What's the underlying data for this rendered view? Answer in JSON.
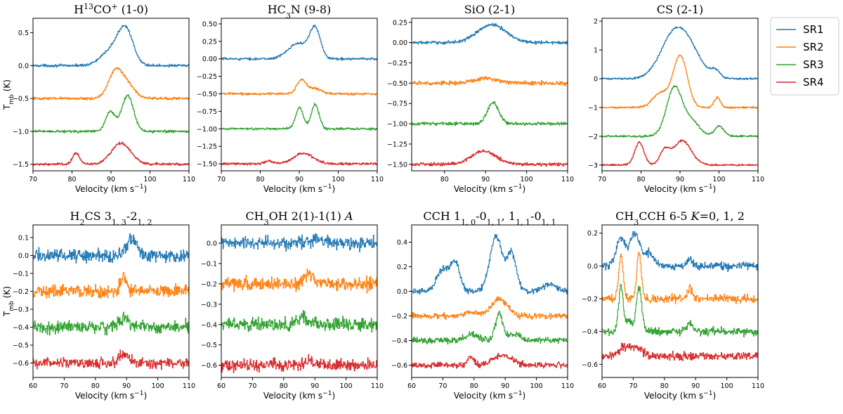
{
  "figure": {
    "ylabel_main": "T",
    "ylabel_sub": "mb",
    "ylabel_unit": "(K)",
    "xlabel": "Velocity (km s",
    "xlabel_exp": "−1",
    "xlabel_close": ")"
  },
  "legend": {
    "placement": "right",
    "entries": [
      {
        "name": "SR1",
        "color": "#1f77b4"
      },
      {
        "name": "SR2",
        "color": "#ff7f0e"
      },
      {
        "name": "SR3",
        "color": "#2ca02c"
      },
      {
        "name": "SR4",
        "color": "#d62728"
      }
    ]
  },
  "chart_data": [
    {
      "type": "line",
      "title": "H13CO+ (1-0)",
      "title_parts": [
        {
          "t": "H"
        },
        {
          "t": "13",
          "s": "sup"
        },
        {
          "t": "CO"
        },
        {
          "t": "+",
          "s": "sup"
        },
        {
          "t": " (1-0)"
        }
      ],
      "xlim": [
        70,
        110
      ],
      "ylim": [
        -1.6,
        0.72
      ],
      "xticks": [
        70,
        80,
        90,
        100,
        110
      ],
      "yticks": [
        -1.5,
        -1.0,
        -0.5,
        0.0,
        0.5
      ],
      "ytick_labels": [
        "−1.5",
        "−1.0",
        "−0.5",
        "0.0",
        "0.5"
      ],
      "series": [
        {
          "name": "SR1",
          "baseline": 0.0,
          "noise": 0.012,
          "peaks": [
            [
              91,
              0.28,
              3
            ],
            [
              93.8,
              0.42,
              1.8
            ]
          ]
        },
        {
          "name": "SR2",
          "baseline": -0.5,
          "noise": 0.012,
          "peaks": [
            [
              91,
              0.38,
              1.8
            ],
            [
              94,
              0.2,
              2
            ]
          ]
        },
        {
          "name": "SR3",
          "baseline": -1.0,
          "noise": 0.012,
          "peaks": [
            [
              89.8,
              0.3,
              1.2
            ],
            [
              94.2,
              0.55,
              1.5
            ]
          ]
        },
        {
          "name": "SR4",
          "baseline": -1.5,
          "noise": 0.012,
          "peaks": [
            [
              81,
              0.17,
              0.9
            ],
            [
              92.5,
              0.32,
              2.5
            ]
          ]
        }
      ]
    },
    {
      "type": "line",
      "title": "HC3N (9-8)",
      "title_parts": [
        {
          "t": "HC"
        },
        {
          "t": "3",
          "s": "sub"
        },
        {
          "t": "N (9-8)"
        }
      ],
      "xlim": [
        70,
        110
      ],
      "ylim": [
        -1.6,
        0.58
      ],
      "xticks": [
        70,
        80,
        90,
        100,
        110
      ],
      "yticks": [
        -1.5,
        -1.25,
        -1.0,
        -0.75,
        -0.5,
        -0.25,
        0.0,
        0.25,
        0.5
      ],
      "ytick_labels": [
        "−1.50",
        "−1.25",
        "−1.00",
        "−0.75",
        "−0.50",
        "−0.25",
        "0.00",
        "0.25",
        "0.50"
      ],
      "series": [
        {
          "name": "SR1",
          "baseline": 0.0,
          "noise": 0.01,
          "peaks": [
            [
              89.5,
              0.22,
              2.5
            ],
            [
              94,
              0.42,
              1.4
            ]
          ]
        },
        {
          "name": "SR2",
          "baseline": -0.5,
          "noise": 0.01,
          "peaks": [
            [
              90.5,
              0.2,
              1.2
            ],
            [
              94,
              0.08,
              1.5
            ]
          ]
        },
        {
          "name": "SR3",
          "baseline": -1.0,
          "noise": 0.01,
          "peaks": [
            [
              90,
              0.3,
              1
            ],
            [
              94,
              0.35,
              1
            ]
          ]
        },
        {
          "name": "SR4",
          "baseline": -1.5,
          "noise": 0.01,
          "peaks": [
            [
              91,
              0.15,
              2.5
            ],
            [
              82,
              0.04,
              1
            ]
          ]
        }
      ]
    },
    {
      "type": "line",
      "title": "SiO (2-1)",
      "title_parts": [
        {
          "t": "SiO (2-1)"
        }
      ],
      "xlim": [
        72,
        110
      ],
      "ylim": [
        -1.58,
        0.3
      ],
      "xticks": [
        80,
        90,
        100,
        110
      ],
      "yticks": [
        -1.5,
        -1.25,
        -1.0,
        -0.75,
        -0.5,
        -0.25,
        0.0,
        0.25
      ],
      "ytick_labels": [
        "−1.50",
        "−1.25",
        "−1.00",
        "−0.75",
        "−0.50",
        "−0.25",
        "0.00",
        "0.25"
      ],
      "series": [
        {
          "name": "SR1",
          "baseline": 0.0,
          "noise": 0.012,
          "peaks": [
            [
              91.5,
              0.22,
              3.5
            ]
          ]
        },
        {
          "name": "SR2",
          "baseline": -0.5,
          "noise": 0.015,
          "peaks": [
            [
              90,
              0.06,
              3
            ]
          ]
        },
        {
          "name": "SR3",
          "baseline": -1.0,
          "noise": 0.012,
          "peaks": [
            [
              91.8,
              0.26,
              1.4
            ]
          ]
        },
        {
          "name": "SR4",
          "baseline": -1.5,
          "noise": 0.012,
          "peaks": [
            [
              89.5,
              0.16,
              3
            ]
          ]
        }
      ]
    },
    {
      "type": "line",
      "title": "CS (2-1)",
      "title_parts": [
        {
          "t": "CS (2-1)"
        }
      ],
      "xlim": [
        70,
        110
      ],
      "ylim": [
        -3.2,
        2.1
      ],
      "xticks": [
        70,
        80,
        90,
        100,
        110
      ],
      "yticks": [
        -3,
        -2,
        -1,
        0,
        1,
        2
      ],
      "ytick_labels": [
        "−3",
        "−2",
        "−1",
        "0",
        "1",
        "2"
      ],
      "series": [
        {
          "name": "SR1",
          "baseline": 0.0,
          "noise": 0.02,
          "peaks": [
            [
              88.5,
              1.55,
              3.5
            ],
            [
              93,
              0.6,
              3
            ],
            [
              99,
              0.25,
              1.2
            ]
          ]
        },
        {
          "name": "SR2",
          "baseline": -1.0,
          "noise": 0.02,
          "peaks": [
            [
              90,
              1.8,
              1.8
            ],
            [
              85,
              0.5,
              2
            ],
            [
              99.5,
              0.35,
              0.8
            ]
          ]
        },
        {
          "name": "SR3",
          "baseline": -2.0,
          "noise": 0.02,
          "peaks": [
            [
              88.5,
              1.7,
              2
            ],
            [
              93,
              0.5,
              2
            ],
            [
              100,
              0.35,
              1.2
            ]
          ]
        },
        {
          "name": "SR4",
          "baseline": -3.0,
          "noise": 0.02,
          "peaks": [
            [
              79.5,
              0.78,
              1.2
            ],
            [
              86,
              0.48,
              1.2
            ],
            [
              90.5,
              0.85,
              2.3
            ]
          ]
        }
      ]
    },
    {
      "type": "line",
      "title": "H2CS 31,3-21,2",
      "title_parts": [
        {
          "t": "H"
        },
        {
          "t": "2",
          "s": "sub"
        },
        {
          "t": "CS 3"
        },
        {
          "t": "1, 3",
          "s": "sub"
        },
        {
          "t": "-2"
        },
        {
          "t": "1, 2",
          "s": "sub"
        }
      ],
      "xlim": [
        60,
        110
      ],
      "ylim": [
        -0.68,
        0.17
      ],
      "xticks": [
        60,
        70,
        80,
        90,
        100,
        110
      ],
      "yticks": [
        -0.6,
        -0.5,
        -0.4,
        -0.3,
        -0.2,
        -0.1,
        0.0,
        0.1
      ],
      "ytick_labels": [
        "−0.6",
        "−0.5",
        "−0.4",
        "−0.3",
        "−0.2",
        "−0.1",
        "0.0",
        "0.1"
      ],
      "series": [
        {
          "name": "SR1",
          "baseline": 0.0,
          "noise": 0.022,
          "peaks": [
            [
              91.5,
              0.1,
              1.5
            ]
          ]
        },
        {
          "name": "SR2",
          "baseline": -0.2,
          "noise": 0.022,
          "peaks": [
            [
              89,
              0.08,
              1
            ]
          ]
        },
        {
          "name": "SR3",
          "baseline": -0.4,
          "noise": 0.022,
          "peaks": [
            [
              89,
              0.05,
              1.5
            ]
          ]
        },
        {
          "name": "SR4",
          "baseline": -0.6,
          "noise": 0.018,
          "peaks": [
            [
              89,
              0.05,
              1.5
            ]
          ]
        }
      ]
    },
    {
      "type": "line",
      "title": "CH3OH 2(1)-1(1) A",
      "title_parts": [
        {
          "t": "CH"
        },
        {
          "t": "3",
          "s": "sub"
        },
        {
          "t": "OH 2(1)-1(1) "
        },
        {
          "t": "A",
          "s": "it"
        }
      ],
      "xlim": [
        60,
        110
      ],
      "ylim": [
        -0.66,
        0.09
      ],
      "xticks": [
        60,
        70,
        80,
        90,
        100,
        110
      ],
      "yticks": [
        -0.6,
        -0.5,
        -0.4,
        -0.3,
        -0.2,
        -0.1,
        0.0
      ],
      "ytick_labels": [
        "−0.6",
        "−0.5",
        "−0.4",
        "−0.3",
        "−0.2",
        "−0.1",
        "0.0"
      ],
      "series": [
        {
          "name": "SR1",
          "baseline": 0.0,
          "noise": 0.02,
          "peaks": [
            [
              91,
              0.03,
              2
            ]
          ]
        },
        {
          "name": "SR2",
          "baseline": -0.2,
          "noise": 0.02,
          "peaks": [
            [
              88,
              0.05,
              1.5
            ]
          ]
        },
        {
          "name": "SR3",
          "baseline": -0.4,
          "noise": 0.02,
          "peaks": [
            [
              86,
              0.04,
              1.5
            ]
          ]
        },
        {
          "name": "SR4",
          "baseline": -0.6,
          "noise": 0.018,
          "peaks": [
            [
              88,
              0.02,
              1.5
            ]
          ]
        }
      ]
    },
    {
      "type": "line",
      "title": "CCH 11,0-01,1, 11,1-01,1",
      "title_parts": [
        {
          "t": "CCH 1"
        },
        {
          "t": "1, 0",
          "s": "sub"
        },
        {
          "t": "-0"
        },
        {
          "t": "1, 1",
          "s": "sub"
        },
        {
          "t": ", 1"
        },
        {
          "t": "1, 1",
          "s": "sub"
        },
        {
          "t": "-0"
        },
        {
          "t": "1, 1",
          "s": "sub"
        }
      ],
      "xlim": [
        60,
        110
      ],
      "ylim": [
        -0.7,
        0.54
      ],
      "xticks": [
        60,
        70,
        80,
        90,
        100,
        110
      ],
      "yticks": [
        -0.6,
        -0.4,
        -0.2,
        0.0,
        0.2,
        0.4
      ],
      "ytick_labels": [
        "−0.6",
        "−0.4",
        "−0.2",
        "0.0",
        "0.2",
        "0.4"
      ],
      "series": [
        {
          "name": "SR1",
          "baseline": 0.0,
          "noise": 0.015,
          "peaks": [
            [
              70,
              0.18,
              2
            ],
            [
              74,
              0.22,
              1.5
            ],
            [
              87,
              0.45,
              2
            ],
            [
              92,
              0.3,
              1.5
            ],
            [
              104,
              0.06,
              2
            ]
          ]
        },
        {
          "name": "SR2",
          "baseline": -0.2,
          "noise": 0.015,
          "peaks": [
            [
              88,
              0.14,
              2.5
            ],
            [
              79,
              0.03,
              2
            ]
          ]
        },
        {
          "name": "SR3",
          "baseline": -0.4,
          "noise": 0.015,
          "peaks": [
            [
              88,
              0.22,
              1.2
            ],
            [
              79,
              0.05,
              2
            ],
            [
              93,
              0.05,
              2
            ]
          ]
        },
        {
          "name": "SR4",
          "baseline": -0.6,
          "noise": 0.015,
          "peaks": [
            [
              79,
              0.07,
              1
            ],
            [
              89,
              0.08,
              3
            ]
          ]
        }
      ]
    },
    {
      "type": "line",
      "title": "CH3CCH 6-5 K=0, 1, 2",
      "title_parts": [
        {
          "t": "CH"
        },
        {
          "t": "3",
          "s": "sub"
        },
        {
          "t": "CCH 6-5 "
        },
        {
          "t": "K",
          "s": "it"
        },
        {
          "t": "=0, 1, 2"
        }
      ],
      "xlim": [
        60,
        110
      ],
      "ylim": [
        -0.68,
        0.25
      ],
      "xticks": [
        60,
        70,
        80,
        90,
        100,
        110
      ],
      "yticks": [
        -0.6,
        -0.4,
        -0.2,
        0.0,
        0.2
      ],
      "ytick_labels": [
        "−0.6",
        "−0.4",
        "−0.2",
        "0.0",
        "0.2"
      ],
      "series": [
        {
          "name": "SR1",
          "baseline": 0.0,
          "noise": 0.015,
          "peaks": [
            [
              66,
              0.17,
              1.5
            ],
            [
              70.5,
              0.2,
              1.5
            ],
            [
              75,
              0.08,
              1.5
            ],
            [
              88,
              0.04,
              1
            ]
          ]
        },
        {
          "name": "SR2",
          "baseline": -0.2,
          "noise": 0.015,
          "peaks": [
            [
              66,
              0.27,
              0.7
            ],
            [
              71.8,
              0.28,
              0.7
            ],
            [
              88,
              0.06,
              0.8
            ]
          ]
        },
        {
          "name": "SR3",
          "baseline": -0.4,
          "noise": 0.015,
          "peaks": [
            [
              66,
              0.28,
              0.7
            ],
            [
              71.8,
              0.26,
              0.9
            ],
            [
              68.5,
              0.06,
              1
            ],
            [
              88,
              0.05,
              1
            ]
          ]
        },
        {
          "name": "SR4",
          "baseline": -0.55,
          "noise": 0.015,
          "peaks": [
            [
              67,
              0.05,
              1.5
            ],
            [
              71,
              0.05,
              2
            ]
          ]
        }
      ]
    }
  ]
}
